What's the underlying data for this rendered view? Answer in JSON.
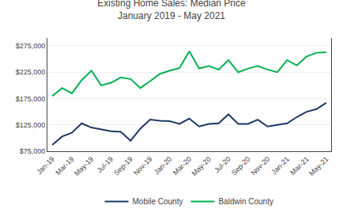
{
  "chart_data": {
    "type": "line",
    "title": "Existing Home Sales: Median Price\nJanuary 2019 - May 2021",
    "categories": [
      "Jan-19",
      null,
      "Mar-19",
      null,
      "May-19",
      null,
      "Jul-19",
      null,
      "Sep-19",
      null,
      "Nov-19",
      null,
      "Jan-20",
      null,
      "Mar-20",
      null,
      "May-20",
      null,
      "Jul-20",
      null,
      "Sep-20",
      null,
      "Nov-20",
      null,
      "Jan-21",
      null,
      "Mar-21",
      null,
      "May-21"
    ],
    "series": [
      {
        "name": "Mobile County",
        "color": "#1F3864",
        "values": [
          87000,
          103000,
          110000,
          128000,
          120000,
          116000,
          113000,
          112000,
          95000,
          118000,
          135000,
          133000,
          132000,
          127000,
          137000,
          122000,
          127000,
          128000,
          145000,
          127000,
          127000,
          135000,
          122000,
          125000,
          128000,
          140000,
          150000,
          155000,
          167000
        ]
      },
      {
        "name": "Baldwin County",
        "color": "#00B050",
        "values": [
          180000,
          195000,
          185000,
          210000,
          228000,
          200000,
          205000,
          215000,
          212000,
          195000,
          208000,
          222000,
          228000,
          233000,
          265000,
          232000,
          237000,
          230000,
          248000,
          225000,
          232000,
          237000,
          230000,
          225000,
          248000,
          238000,
          255000,
          262000,
          263000
        ]
      }
    ],
    "ylim": [
      75000,
      290000
    ],
    "yticks": [
      {
        "value": 75000,
        "label": "$75,000"
      },
      {
        "value": 125000,
        "label": "$125,000"
      },
      {
        "value": 175000,
        "label": "$175,000"
      },
      {
        "value": 225000,
        "label": "$225,000"
      },
      {
        "value": 275000,
        "label": "$275,000"
      }
    ],
    "grid": true,
    "legend": "bottom"
  }
}
